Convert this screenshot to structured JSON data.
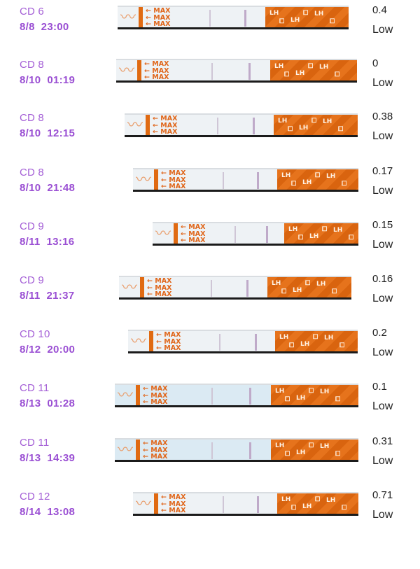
{
  "strip_text": {
    "max_arrow": "← MAX",
    "brand": "LH",
    "glyph": "⧠",
    "waves": "〰"
  },
  "colors": {
    "label": "#a45fd6",
    "strip_orange": "#e06a12",
    "text": "#222222"
  },
  "tests": [
    {
      "cd": "CD 6",
      "datetime": "8/8  23:00",
      "value": "0.4",
      "level": "Low"
    },
    {
      "cd": "CD 8",
      "datetime": "8/10  01:19",
      "value": "0",
      "level": "Low"
    },
    {
      "cd": "CD 8",
      "datetime": "8/10  12:15",
      "value": "0.38",
      "level": "Low"
    },
    {
      "cd": "CD 8",
      "datetime": "8/10  21:48",
      "value": "0.17",
      "level": "Low"
    },
    {
      "cd": "CD 9",
      "datetime": "8/11  13:16",
      "value": "0.15",
      "level": "Low"
    },
    {
      "cd": "CD 9",
      "datetime": "8/11  21:37",
      "value": "0.16",
      "level": "Low"
    },
    {
      "cd": "CD 10",
      "datetime": "8/12  20:00",
      "value": "0.2",
      "level": "Low"
    },
    {
      "cd": "CD 11",
      "datetime": "8/13  01:28",
      "value": "0.1",
      "level": "Low"
    },
    {
      "cd": "CD 11",
      "datetime": "8/13  14:39",
      "value": "0.31",
      "level": "Low"
    },
    {
      "cd": "CD 12",
      "datetime": "8/14  13:08",
      "value": "0.71",
      "level": "Low"
    }
  ]
}
